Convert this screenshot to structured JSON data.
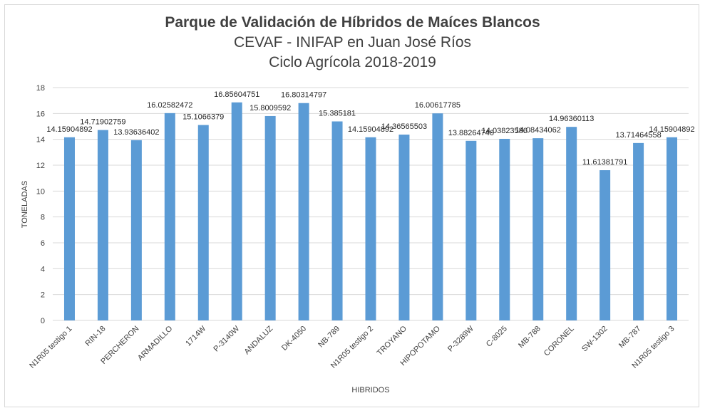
{
  "chart_data": {
    "type": "bar",
    "title": "Parque de Validación de Híbridos de Maíces Blancos",
    "subtitle_1": "CEVAF - INIFAP en Juan José Ríos",
    "subtitle_2": "Ciclo Agrícola 2018-2019",
    "xlabel": "HIBRIDOS",
    "ylabel": "TONELADAS",
    "ylim": [
      0,
      18
    ],
    "yticks": [
      0,
      2,
      4,
      6,
      8,
      10,
      12,
      14,
      16,
      18
    ],
    "grid": true,
    "bar_color": "#5b9bd5",
    "categories": [
      "N1R05 testigo 1",
      "RIN-18",
      "PERCHERON",
      "ARMADILLO",
      "1714W",
      "P-3140W",
      "ANDALUZ",
      "DK-4050",
      "NB-789",
      "N1R05 testigo 2",
      "TROYANO",
      "HIPOPOTAMO",
      "P-3289W",
      "C-8025",
      "MB-788",
      "CORONEL",
      "SW-1302",
      "MB-787",
      "N1R05 testigo 3"
    ],
    "values": [
      14.15904892,
      14.71902759,
      13.93636402,
      16.02582472,
      15.1066379,
      16.85604751,
      15.8009592,
      16.80314797,
      15.385181,
      14.15904892,
      14.36565503,
      16.00617785,
      13.88264746,
      14.03823586,
      14.08434062,
      14.96360113,
      11.61381791,
      13.71464558,
      14.15904892
    ],
    "value_labels": [
      "14.15904892",
      "14.71902759",
      "13.93636402",
      "16.02582472",
      "15.1066379",
      "16.85604751",
      "15.8009592",
      "16.80314797",
      "15.385181",
      "14.15904892",
      "14.36565503",
      "16.00617785",
      "13.88264746",
      "14.03823586",
      "14.08434062",
      "14.96360113",
      "11.61381791",
      "13.71464558",
      "14.15904892"
    ]
  }
}
